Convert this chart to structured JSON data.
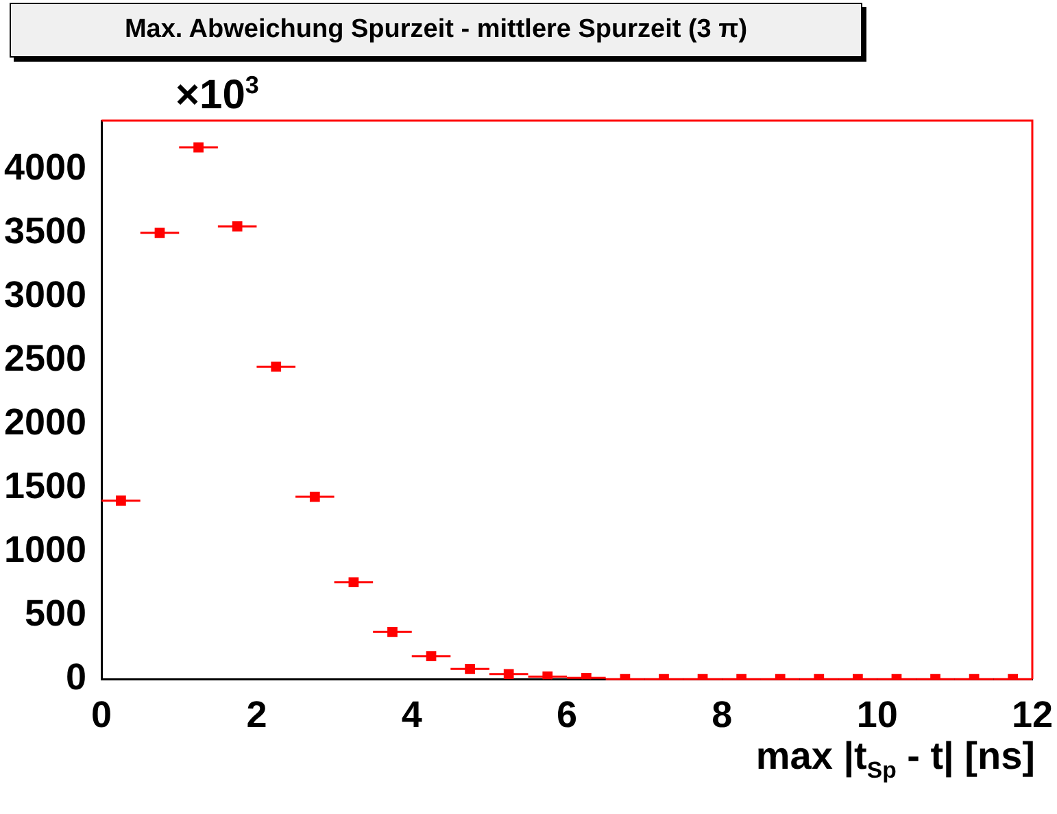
{
  "chart_data": {
    "type": "scatter",
    "title": "Max. Abweichung Spurzeit - mittlere Spurzeit (3 π)",
    "xlabel": "max |t$_{Sp}$ - t| [ns]",
    "ylabel": "×10$^{3}$",
    "x": [
      0.25,
      0.75,
      1.25,
      1.75,
      2.25,
      2.75,
      3.25,
      3.75,
      4.25,
      4.75,
      5.25,
      5.75,
      6.25,
      6.75,
      7.25,
      7.75,
      8.25,
      8.75,
      9.25,
      9.75,
      10.25,
      10.75,
      11.25,
      11.75
    ],
    "series": [
      {
        "color": "#ff0000",
        "values": [
          1400,
          3500,
          4170,
          3550,
          2450,
          1430,
          760,
          370,
          180,
          80,
          40,
          20,
          10,
          0,
          0,
          0,
          0,
          0,
          0,
          0,
          0,
          0,
          0,
          0
        ],
        "xerrors": [
          0.25,
          0.25,
          0.25,
          0.25,
          0.25,
          0.25,
          0.25,
          0.25,
          0.25,
          0.25,
          0.25,
          0.25,
          0.25,
          0.25,
          0.25,
          0.25,
          0.25,
          0.25,
          0.25,
          0.25,
          0.25,
          0.25,
          0.25,
          0.25
        ]
      }
    ],
    "xlim": [
      0,
      12
    ],
    "xticks": [
      0,
      2,
      4,
      6,
      8,
      10,
      12
    ],
    "ylim": [
      0,
      4380
    ],
    "yticks": [
      0,
      500,
      1000,
      1500,
      2000,
      2500,
      3000,
      3500,
      4000
    ],
    "marker": "square",
    "grid": false,
    "legend": false
  }
}
